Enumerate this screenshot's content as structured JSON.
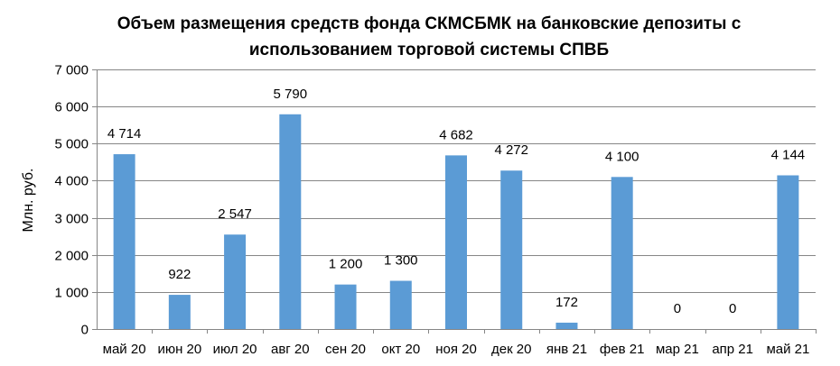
{
  "chart_data": {
    "type": "bar",
    "title_line1": "Объем размещения средств фонда СКМСБМК на банковские депозиты с",
    "title_line2": "использованием торговой системы СПВБ",
    "ylabel": "Млн. руб.",
    "xlabel": "",
    "categories": [
      "май 20",
      "июн 20",
      "июл 20",
      "авг 20",
      "сен 20",
      "окт 20",
      "ноя 20",
      "дек 20",
      "янв 21",
      "фев 21",
      "мар 21",
      "апр 21",
      "май 21"
    ],
    "values": [
      4714,
      922,
      2547,
      5790,
      1200,
      1300,
      4682,
      4272,
      172,
      4100,
      0,
      0,
      4144
    ],
    "value_labels": [
      "4 714",
      "922",
      "2 547",
      "5 790",
      "1 200",
      "1 300",
      "4 682",
      "4 272",
      "172",
      "4 100",
      "0",
      "0",
      "4 144"
    ],
    "yticks": [
      0,
      1000,
      2000,
      3000,
      4000,
      5000,
      6000,
      7000
    ],
    "ytick_labels": [
      "0",
      "1 000",
      "2 000",
      "3 000",
      "4 000",
      "5 000",
      "6 000",
      "7 000"
    ],
    "ylim": [
      0,
      7000
    ],
    "grid": true,
    "legend": "none",
    "bar_color": "#5b9bd5",
    "grid_color": "#868686"
  }
}
